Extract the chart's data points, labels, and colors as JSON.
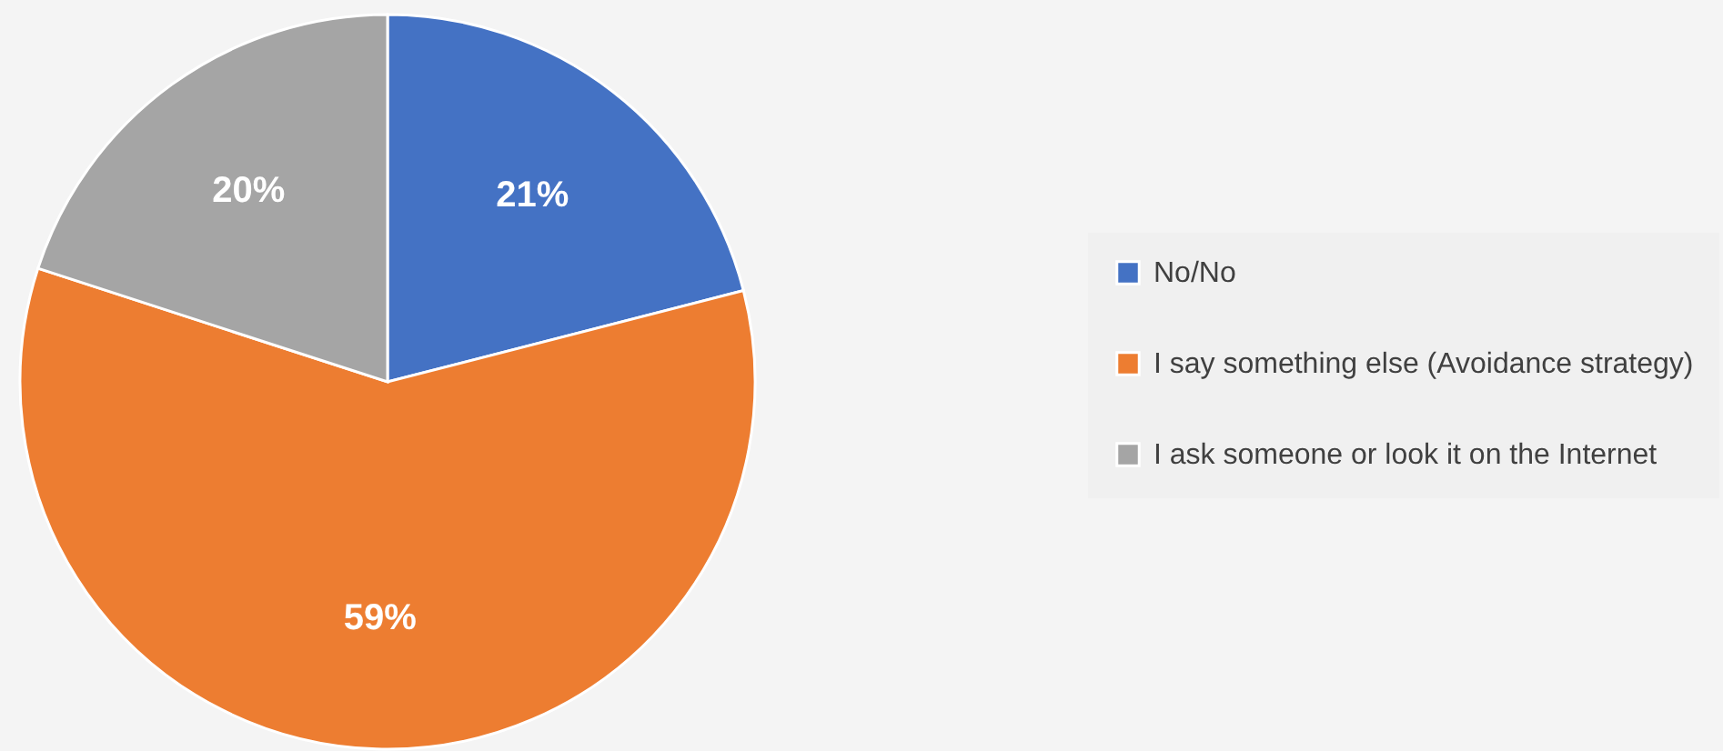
{
  "chart_data": {
    "type": "pie",
    "categories": [
      "No/No",
      "I say something else (Avoidance strategy)",
      "I ask someone or look it on the Internet"
    ],
    "values": [
      21,
      59,
      20
    ],
    "colors": [
      "#4472c4",
      "#ed7d31",
      "#a5a5a5"
    ],
    "value_labels": [
      "21%",
      "59%",
      "20%"
    ],
    "legend": "right"
  }
}
